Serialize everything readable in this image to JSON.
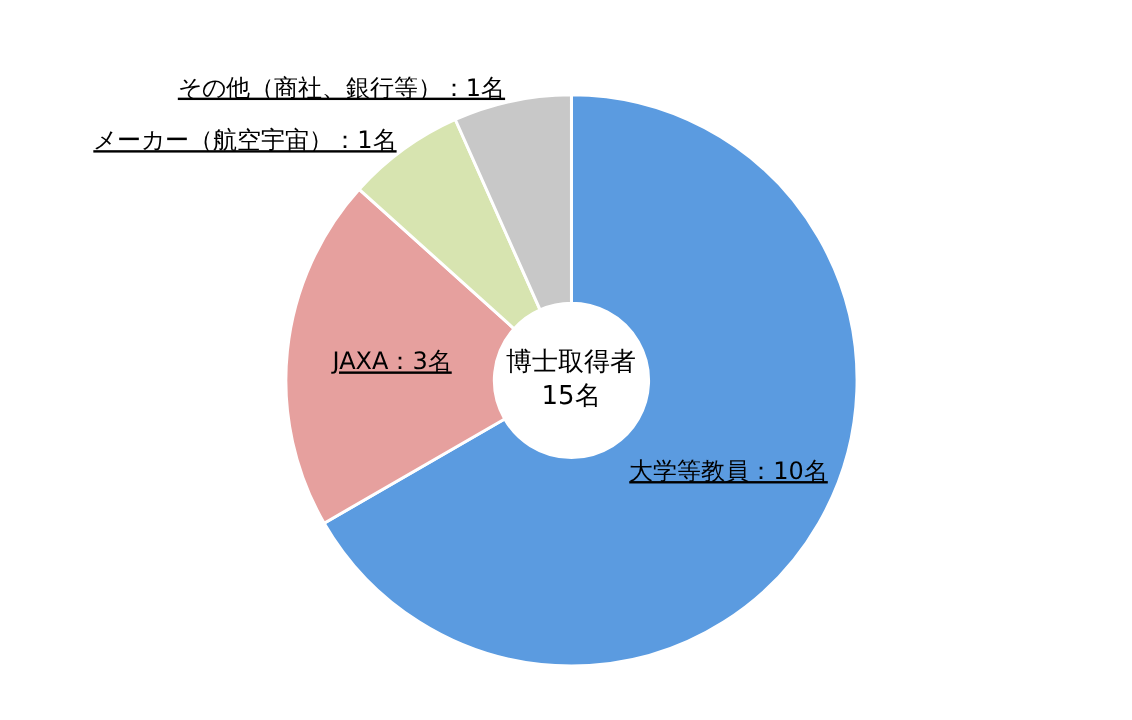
{
  "chart_data": {
    "type": "donut",
    "categories": [
      "大学等教員：10名",
      "JAXA：3名",
      "メーカー（航空宇宙）：1名",
      "その他（商社、銀行等）：1名"
    ],
    "values": [
      10,
      3,
      1,
      1
    ],
    "colors": [
      "#5b9be0",
      "#e6a09e",
      "#d7e4b0",
      "#c8c8c8"
    ],
    "annotations": [
      "博士取得者\n15名"
    ],
    "legend": false
  }
}
